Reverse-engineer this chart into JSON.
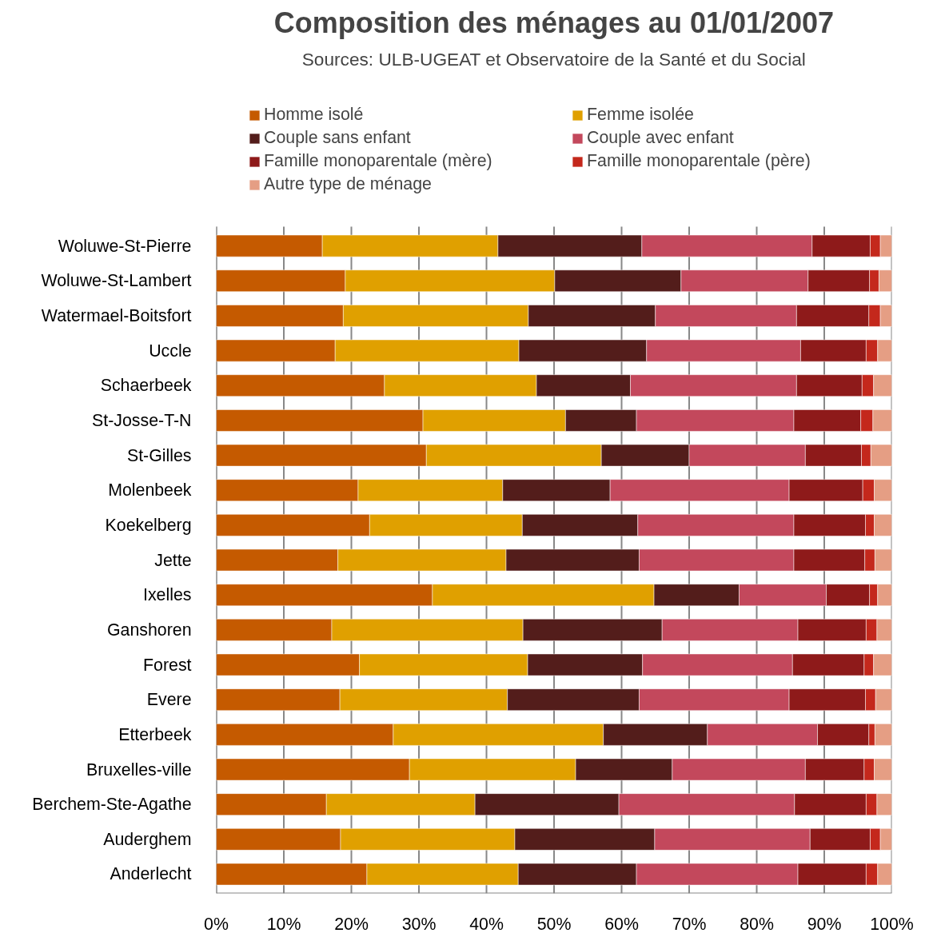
{
  "chart_data": {
    "type": "bar",
    "orientation": "horizontal",
    "stacked": true,
    "title": "Composition des ménages au 01/01/2007",
    "subtitle": "Sources: ULB-UGEAT et Observatoire de la Santé et du Social",
    "categories": [
      "Woluwe-St-Pierre",
      "Woluwe-St-Lambert",
      "Watermael-Boitsfort",
      "Uccle",
      "Schaerbeek",
      "St-Josse-T-N",
      "St-Gilles",
      "Molenbeek",
      "Koekelberg",
      "Jette",
      "Ixelles",
      "Ganshoren",
      "Forest",
      "Evere",
      "Etterbeek",
      "Bruxelles-ville",
      "Berchem-Ste-Agathe",
      "Auderghem",
      "Anderlecht"
    ],
    "series": [
      {
        "name": "Homme isolé",
        "color": "#c55a00",
        "values": [
          15.7,
          19.1,
          18.8,
          17.6,
          24.9,
          30.6,
          31.1,
          21.0,
          22.7,
          18.0,
          32.0,
          17.1,
          21.2,
          18.3,
          26.2,
          28.6,
          16.3,
          18.4,
          22.3
        ]
      },
      {
        "name": "Femme isolée",
        "color": "#e0a000",
        "values": [
          26.0,
          31.0,
          27.4,
          27.2,
          22.5,
          21.1,
          25.9,
          21.4,
          22.6,
          24.9,
          32.8,
          28.3,
          24.9,
          24.8,
          31.1,
          24.6,
          22.0,
          25.8,
          22.4
        ]
      },
      {
        "name": "Couple sans enfant",
        "color": "#531d1b",
        "values": [
          21.3,
          18.7,
          18.8,
          18.9,
          13.9,
          10.5,
          13.0,
          15.9,
          17.1,
          19.7,
          12.6,
          20.6,
          17.0,
          19.5,
          15.4,
          14.3,
          21.3,
          20.7,
          17.5
        ]
      },
      {
        "name": "Couple avec enfant",
        "color": "#c3485c",
        "values": [
          25.2,
          18.8,
          20.9,
          22.8,
          24.6,
          23.3,
          17.2,
          26.5,
          23.1,
          22.9,
          12.9,
          20.1,
          22.2,
          22.2,
          16.3,
          19.7,
          26.0,
          23.0,
          23.9
        ]
      },
      {
        "name": "Famille monoparentale (mère)",
        "color": "#8e1a1a",
        "values": [
          8.6,
          9.1,
          10.7,
          9.7,
          9.7,
          9.9,
          8.3,
          10.9,
          10.6,
          10.5,
          6.4,
          10.1,
          10.6,
          11.3,
          7.6,
          8.7,
          10.6,
          8.9,
          10.1
        ]
      },
      {
        "name": "Famille monoparentale (père)",
        "color": "#c4281c",
        "values": [
          1.5,
          1.4,
          1.7,
          1.7,
          1.7,
          1.8,
          1.4,
          1.7,
          1.3,
          1.5,
          1.2,
          1.6,
          1.4,
          1.5,
          0.9,
          1.5,
          1.6,
          1.5,
          1.7
        ]
      },
      {
        "name": "Autre type de ménage",
        "color": "#e59e84",
        "values": [
          1.7,
          1.9,
          1.7,
          2.1,
          2.7,
          2.8,
          3.1,
          2.6,
          2.6,
          2.5,
          2.1,
          2.2,
          2.7,
          2.4,
          2.5,
          2.6,
          2.2,
          1.7,
          2.1
        ]
      }
    ],
    "xlim": [
      0,
      100
    ],
    "xticks": [
      {
        "value": 0,
        "label": "0%"
      },
      {
        "value": 10,
        "label": "10%"
      },
      {
        "value": 20,
        "label": "20%"
      },
      {
        "value": 30,
        "label": "30%"
      },
      {
        "value": 40,
        "label": "40%"
      },
      {
        "value": 50,
        "label": "50%"
      },
      {
        "value": 60,
        "label": "60%"
      },
      {
        "value": 70,
        "label": "70%"
      },
      {
        "value": 80,
        "label": "80%"
      },
      {
        "value": 90,
        "label": "90%"
      },
      {
        "value": 100,
        "label": "100%"
      }
    ],
    "grid": "x",
    "legend": "top"
  }
}
